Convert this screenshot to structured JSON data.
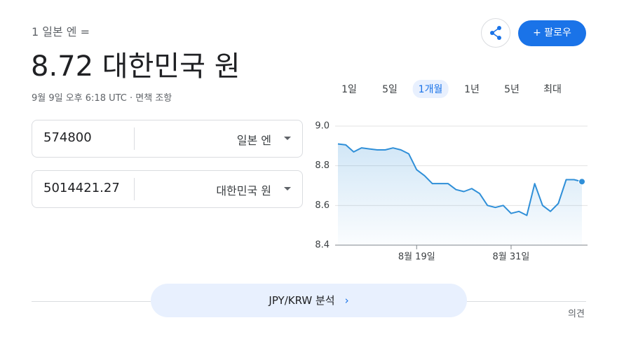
{
  "header": {
    "subtitle": "1 일본 엔 =",
    "result": "8.72 대한민국 원",
    "timestamp": "9월 9일 오후 6:18 UTC · ",
    "disclaimer": "면책 조항",
    "follow": "+ 팔로우"
  },
  "ranges": [
    "1일",
    "5일",
    "1개월",
    "1년",
    "5년",
    "최대"
  ],
  "converter": {
    "from_amount": "574800",
    "from_currency": "일본 엔",
    "to_amount": "5014421.27",
    "to_currency": "대한민국 원"
  },
  "footer": {
    "analysis": "JPY/KRW 분석",
    "feedback": "의견"
  },
  "chart_data": {
    "type": "line",
    "color": "#2f8fd8",
    "categories": [
      null,
      null,
      null,
      null,
      null,
      null,
      null,
      null,
      null,
      null,
      "8월 19일",
      null,
      null,
      null,
      null,
      null,
      null,
      null,
      null,
      null,
      null,
      null,
      "8월 31일",
      null,
      null,
      null,
      null,
      null,
      null,
      null,
      null,
      null
    ],
    "values": [
      8.91,
      8.905,
      8.87,
      8.89,
      8.885,
      8.88,
      8.88,
      8.89,
      8.88,
      8.86,
      8.78,
      8.75,
      8.71,
      8.71,
      8.71,
      8.68,
      8.67,
      8.685,
      8.66,
      8.6,
      8.59,
      8.6,
      8.56,
      8.57,
      8.55,
      8.71,
      8.6,
      8.57,
      8.61,
      8.73,
      8.73,
      8.72
    ],
    "ylim": [
      8.4,
      9.0
    ],
    "yticks": [
      8.4,
      8.6,
      8.8,
      {
        "value": 9.0,
        "label": "9.0"
      }
    ],
    "grid": true
  }
}
